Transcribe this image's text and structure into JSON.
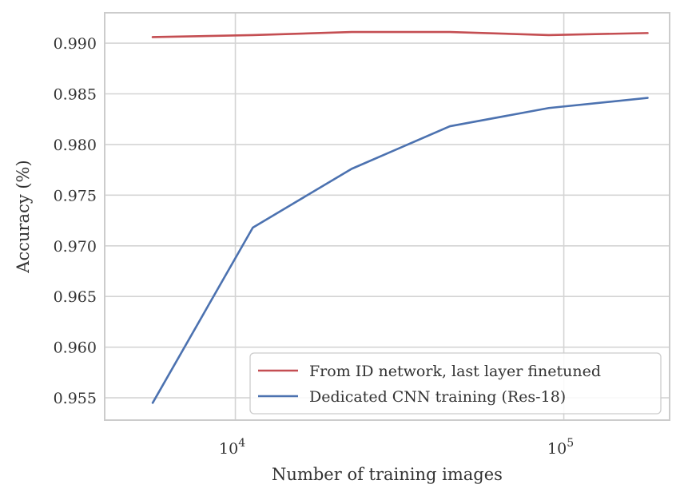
{
  "chart_data": {
    "type": "line",
    "title": "",
    "xlabel": "Number of training images",
    "ylabel": "Accuracy (%)",
    "xscale": "log",
    "xlim": [
      4000,
      210000
    ],
    "ylim": [
      0.9528,
      0.993
    ],
    "yticks": [
      0.955,
      0.96,
      0.965,
      0.97,
      0.975,
      0.98,
      0.985,
      0.99
    ],
    "ytick_labels": [
      "0.955",
      "0.960",
      "0.965",
      "0.970",
      "0.975",
      "0.980",
      "0.985",
      "0.990"
    ],
    "xticks": [
      10000,
      100000
    ],
    "xtick_labels": [
      {
        "base": "10",
        "exp": "4"
      },
      {
        "base": "10",
        "exp": "5"
      }
    ],
    "grid": true,
    "legend_position": "lower-right",
    "series": [
      {
        "name": "From ID network, last layer finetuned",
        "color": "#c44e52",
        "x": [
          5600,
          11300,
          22600,
          45000,
          90000,
          180000
        ],
        "y": [
          0.9906,
          0.9908,
          0.9911,
          0.9911,
          0.9908,
          0.991
        ]
      },
      {
        "name": "Dedicated CNN training (Res-18)",
        "color": "#4c72b0",
        "x": [
          5600,
          11300,
          22600,
          45000,
          90000,
          180000
        ],
        "y": [
          0.9545,
          0.9718,
          0.9776,
          0.9818,
          0.9836,
          0.9846
        ]
      }
    ]
  }
}
